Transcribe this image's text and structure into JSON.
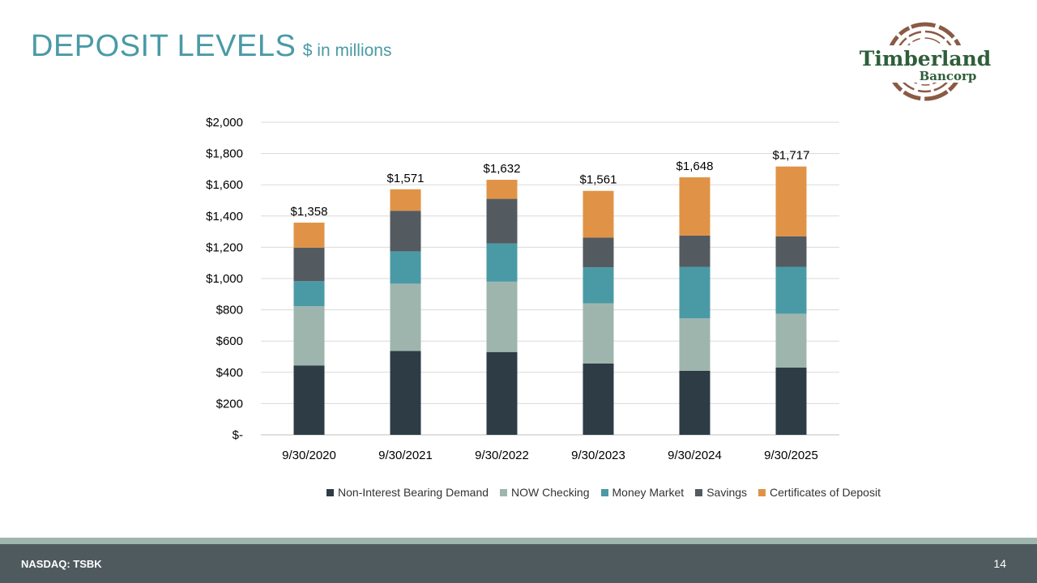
{
  "slide": {
    "title": "DEPOSIT LEVELS",
    "subtitle": "$ in millions",
    "footer_ticker": "NASDAQ: TSBK",
    "page_number": "14"
  },
  "logo": {
    "name_line1": "Timberland",
    "name_line2": "Bancorp",
    "ring_color": "#8a5a44",
    "text_color": "#2f5e3a"
  },
  "chart_data": {
    "type": "bar",
    "stacked": true,
    "categories": [
      "9/30/2020",
      "9/30/2021",
      "9/30/2022",
      "9/30/2023",
      "9/30/2024",
      "9/30/2025"
    ],
    "series": [
      {
        "name": "Non-Interest Bearing Demand",
        "color": "#2e3c46",
        "values": [
          443,
          537,
          530,
          457,
          410,
          430
        ]
      },
      {
        "name": "NOW Checking",
        "color": "#9eb5ae",
        "values": [
          380,
          430,
          450,
          385,
          335,
          345
        ]
      },
      {
        "name": "Money Market",
        "color": "#4a9aa6",
        "values": [
          160,
          207,
          245,
          230,
          330,
          300
        ]
      },
      {
        "name": "Savings",
        "color": "#535b60",
        "values": [
          215,
          260,
          285,
          190,
          200,
          195
        ]
      },
      {
        "name": "Certificates of Deposit",
        "color": "#e09346",
        "values": [
          160,
          137,
          122,
          299,
          373,
          447
        ]
      }
    ],
    "totals": [
      "$1,358",
      "$1,571",
      "$1,632",
      "$1,561",
      "$1,648",
      "$1,717"
    ],
    "y_ticks": [
      "$-",
      "$200",
      "$400",
      "$600",
      "$800",
      "$1,000",
      "$1,200",
      "$1,400",
      "$1,600",
      "$1,800",
      "$2,000"
    ],
    "ylim": [
      0,
      2000
    ],
    "y_step": 200,
    "grid": true,
    "legend_position": "bottom"
  }
}
